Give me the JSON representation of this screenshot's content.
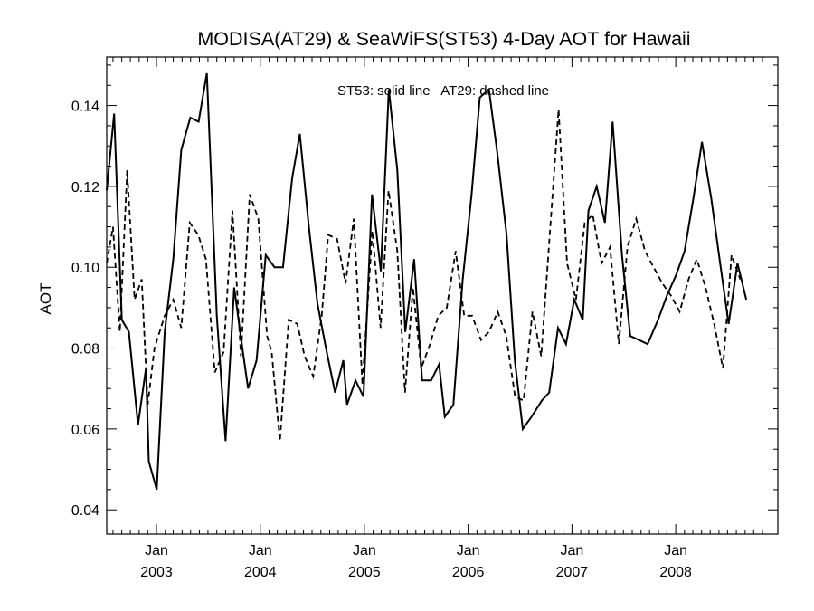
{
  "chart_data": {
    "type": "line",
    "title": "MODISA(AT29) & SeaWiFS(ST53) 4-Day AOT for Hawaii",
    "xlabel": "",
    "ylabel": "AOT",
    "annotation": "ST53: solid line   AT29: dashed line",
    "xlim": [
      "2002-07-10",
      "2008-12-25"
    ],
    "ylim": [
      0.034,
      0.152
    ],
    "y_ticks": [
      {
        "value": 0.04,
        "label": "0.04"
      },
      {
        "value": 0.06,
        "label": "0.06"
      },
      {
        "value": 0.08,
        "label": "0.08"
      },
      {
        "value": 0.1,
        "label": "0.10"
      },
      {
        "value": 0.12,
        "label": "0.12"
      },
      {
        "value": 0.14,
        "label": "0.14"
      }
    ],
    "x_ticks": [
      {
        "date": "2003-01-01",
        "month": "Jan",
        "year": "2003"
      },
      {
        "date": "2004-01-01",
        "month": "Jan",
        "year": "2004"
      },
      {
        "date": "2005-01-01",
        "month": "Jan",
        "year": "2005"
      },
      {
        "date": "2006-01-01",
        "month": "Jan",
        "year": "2006"
      },
      {
        "date": "2007-01-01",
        "month": "Jan",
        "year": "2007"
      },
      {
        "date": "2008-01-01",
        "month": "Jan",
        "year": "2008"
      }
    ],
    "grid": false,
    "series": [
      {
        "name": "ST53",
        "style": "solid",
        "color": "#000000",
        "points": [
          [
            "2002-07-10",
            0.119
          ],
          [
            "2002-08-05",
            0.138
          ],
          [
            "2002-09-01",
            0.087
          ],
          [
            "2002-09-26",
            0.084
          ],
          [
            "2002-10-28",
            0.061
          ],
          [
            "2002-11-25",
            0.075
          ],
          [
            "2002-12-05",
            0.052
          ],
          [
            "2003-01-02",
            0.045
          ],
          [
            "2003-01-30",
            0.084
          ],
          [
            "2003-03-01",
            0.102
          ],
          [
            "2003-03-29",
            0.129
          ],
          [
            "2003-04-30",
            0.137
          ],
          [
            "2003-05-29",
            0.136
          ],
          [
            "2003-06-27",
            0.148
          ],
          [
            "2003-08-01",
            0.088
          ],
          [
            "2003-09-01",
            0.057
          ],
          [
            "2003-10-01",
            0.095
          ],
          [
            "2003-11-01",
            0.079
          ],
          [
            "2003-11-19",
            0.07
          ],
          [
            "2003-12-19",
            0.077
          ],
          [
            "2004-01-20",
            0.103
          ],
          [
            "2004-02-20",
            0.1
          ],
          [
            "2004-03-21",
            0.1
          ],
          [
            "2004-04-22",
            0.122
          ],
          [
            "2004-05-19",
            0.133
          ],
          [
            "2004-06-20",
            0.11
          ],
          [
            "2004-07-20",
            0.091
          ],
          [
            "2004-08-19",
            0.08
          ],
          [
            "2004-09-20",
            0.069
          ],
          [
            "2004-10-19",
            0.077
          ],
          [
            "2004-11-01",
            0.066
          ],
          [
            "2004-12-01",
            0.072
          ],
          [
            "2004-12-29",
            0.068
          ],
          [
            "2005-01-28",
            0.118
          ],
          [
            "2005-02-28",
            0.099
          ],
          [
            "2005-03-28",
            0.144
          ],
          [
            "2005-04-27",
            0.124
          ],
          [
            "2005-05-25",
            0.084
          ],
          [
            "2005-06-25",
            0.102
          ],
          [
            "2005-07-23",
            0.072
          ],
          [
            "2005-08-24",
            0.072
          ],
          [
            "2005-09-21",
            0.076
          ],
          [
            "2005-10-11",
            0.063
          ],
          [
            "2005-11-10",
            0.066
          ],
          [
            "2005-12-13",
            0.097
          ],
          [
            "2006-01-13",
            0.118
          ],
          [
            "2006-02-11",
            0.142
          ],
          [
            "2006-03-15",
            0.144
          ],
          [
            "2006-04-14",
            0.128
          ],
          [
            "2006-05-16",
            0.108
          ],
          [
            "2006-06-14",
            0.077
          ],
          [
            "2006-07-12",
            0.06
          ],
          [
            "2006-08-12",
            0.063
          ],
          [
            "2006-09-17",
            0.067
          ],
          [
            "2006-10-13",
            0.069
          ],
          [
            "2006-11-13",
            0.085
          ],
          [
            "2006-12-11",
            0.081
          ],
          [
            "2007-01-09",
            0.092
          ],
          [
            "2007-02-08",
            0.087
          ],
          [
            "2007-02-28",
            0.114
          ],
          [
            "2007-03-29",
            0.12
          ],
          [
            "2007-04-27",
            0.111
          ],
          [
            "2007-05-24",
            0.136
          ],
          [
            "2007-06-26",
            0.103
          ],
          [
            "2007-07-25",
            0.083
          ],
          [
            "2007-08-25",
            0.082
          ],
          [
            "2007-09-24",
            0.081
          ],
          [
            "2007-10-31",
            0.087
          ],
          [
            "2007-12-01",
            0.093
          ],
          [
            "2008-01-02",
            0.098
          ],
          [
            "2008-02-01",
            0.104
          ],
          [
            "2008-03-03",
            0.117
          ],
          [
            "2008-04-02",
            0.131
          ],
          [
            "2008-05-05",
            0.117
          ],
          [
            "2008-06-05",
            0.101
          ],
          [
            "2008-07-05",
            0.086
          ],
          [
            "2008-08-05",
            0.101
          ],
          [
            "2008-09-05",
            0.092
          ]
        ]
      },
      {
        "name": "AT29",
        "style": "dashed",
        "color": "#000000",
        "points": [
          [
            "2002-07-10",
            0.101
          ],
          [
            "2002-08-01",
            0.11
          ],
          [
            "2002-08-25",
            0.084
          ],
          [
            "2002-09-20",
            0.124
          ],
          [
            "2002-10-16",
            0.092
          ],
          [
            "2002-11-10",
            0.097
          ],
          [
            "2002-12-01",
            0.066
          ],
          [
            "2002-12-25",
            0.08
          ],
          [
            "2003-01-30",
            0.088
          ],
          [
            "2003-03-01",
            0.092
          ],
          [
            "2003-03-29",
            0.085
          ],
          [
            "2003-04-28",
            0.111
          ],
          [
            "2003-05-28",
            0.108
          ],
          [
            "2003-06-24",
            0.102
          ],
          [
            "2003-07-25",
            0.074
          ],
          [
            "2003-08-25",
            0.079
          ],
          [
            "2003-09-25",
            0.114
          ],
          [
            "2003-10-25",
            0.078
          ],
          [
            "2003-11-25",
            0.118
          ],
          [
            "2003-12-25",
            0.112
          ],
          [
            "2004-01-25",
            0.083
          ],
          [
            "2004-02-10",
            0.079
          ],
          [
            "2004-03-10",
            0.057
          ],
          [
            "2004-04-10",
            0.087
          ],
          [
            "2004-05-10",
            0.086
          ],
          [
            "2004-06-05",
            0.078
          ],
          [
            "2004-07-05",
            0.073
          ],
          [
            "2004-08-04",
            0.088
          ],
          [
            "2004-08-27",
            0.108
          ],
          [
            "2004-09-27",
            0.107
          ],
          [
            "2004-10-27",
            0.096
          ],
          [
            "2004-11-25",
            0.112
          ],
          [
            "2004-12-25",
            0.071
          ],
          [
            "2005-01-29",
            0.109
          ],
          [
            "2005-02-27",
            0.085
          ],
          [
            "2005-03-27",
            0.119
          ],
          [
            "2005-04-27",
            0.104
          ],
          [
            "2005-05-24",
            0.069
          ],
          [
            "2005-06-21",
            0.095
          ],
          [
            "2005-07-20",
            0.075
          ],
          [
            "2005-08-20",
            0.081
          ],
          [
            "2005-09-18",
            0.088
          ],
          [
            "2005-10-18",
            0.09
          ],
          [
            "2005-11-18",
            0.104
          ],
          [
            "2005-12-18",
            0.088
          ],
          [
            "2006-01-15",
            0.088
          ],
          [
            "2006-02-15",
            0.082
          ],
          [
            "2006-03-15",
            0.084
          ],
          [
            "2006-04-15",
            0.089
          ],
          [
            "2006-05-15",
            0.083
          ],
          [
            "2006-06-15",
            0.068
          ],
          [
            "2006-07-15",
            0.067
          ],
          [
            "2006-08-15",
            0.089
          ],
          [
            "2006-09-15",
            0.078
          ],
          [
            "2006-10-15",
            0.108
          ],
          [
            "2006-11-15",
            0.139
          ],
          [
            "2006-12-15",
            0.101
          ],
          [
            "2007-01-15",
            0.092
          ],
          [
            "2007-02-15",
            0.111
          ],
          [
            "2007-03-15",
            0.113
          ],
          [
            "2007-04-15",
            0.101
          ],
          [
            "2007-05-15",
            0.105
          ],
          [
            "2007-06-15",
            0.081
          ],
          [
            "2007-07-15",
            0.105
          ],
          [
            "2007-08-15",
            0.112
          ],
          [
            "2007-09-15",
            0.104
          ],
          [
            "2007-10-15",
            0.1
          ],
          [
            "2007-11-15",
            0.096
          ],
          [
            "2007-12-15",
            0.093
          ],
          [
            "2008-01-15",
            0.089
          ],
          [
            "2008-02-15",
            0.097
          ],
          [
            "2008-03-15",
            0.102
          ],
          [
            "2008-04-15",
            0.095
          ],
          [
            "2008-05-15",
            0.086
          ],
          [
            "2008-06-15",
            0.075
          ],
          [
            "2008-07-15",
            0.103
          ],
          [
            "2008-08-15",
            0.097
          ]
        ]
      }
    ]
  }
}
